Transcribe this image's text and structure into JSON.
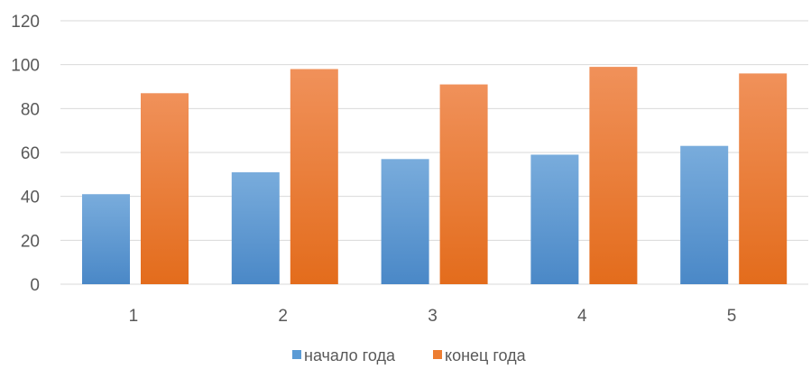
{
  "chart_data": {
    "type": "bar",
    "title": "",
    "xlabel": "",
    "ylabel": "",
    "categories": [
      "1",
      "2",
      "3",
      "4",
      "5"
    ],
    "series": [
      {
        "name": "начало года",
        "values": [
          41,
          51,
          57,
          59,
          63
        ],
        "color": "#5b9bd5"
      },
      {
        "name": "конец года",
        "values": [
          87,
          98,
          91,
          99,
          96
        ],
        "color": "#ed7d31"
      }
    ],
    "ylim": [
      0,
      120
    ],
    "yticks": [
      "0",
      "20",
      "40",
      "60",
      "80",
      "100",
      "120"
    ],
    "grid": true,
    "legend_position": "bottom"
  }
}
